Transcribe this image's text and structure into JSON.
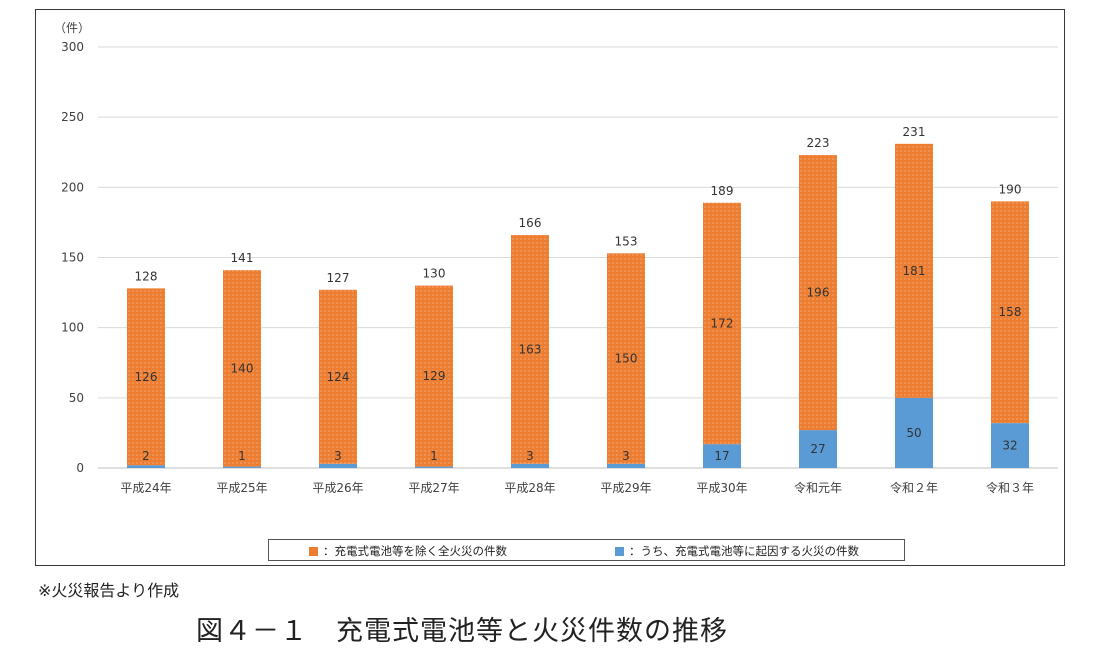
{
  "chart_data": {
    "type": "bar",
    "stacked": true,
    "unit_label": "（件）",
    "ylim": [
      0,
      300
    ],
    "yticks": [
      0,
      50,
      100,
      150,
      200,
      250,
      300
    ],
    "grid": true,
    "categories": [
      "平成24年",
      "平成25年",
      "平成26年",
      "平成27年",
      "平成28年",
      "平成29年",
      "平成30年",
      "令和元年",
      "令和２年",
      "令和３年"
    ],
    "series": [
      {
        "name": "：うち、充電式電池等に起因する火災の件数",
        "color": "#5b9bd5",
        "values": [
          2,
          1,
          3,
          1,
          3,
          3,
          17,
          27,
          50,
          32
        ]
      },
      {
        "name": "：充電式電池等を除く全火災の件数",
        "color": "#ed7d31",
        "values": [
          126,
          140,
          124,
          129,
          163,
          150,
          172,
          196,
          181,
          158
        ]
      }
    ],
    "totals": [
      128,
      141,
      127,
      130,
      166,
      153,
      189,
      223,
      231,
      190
    ],
    "legend_position": "bottom"
  },
  "legend": {
    "other_fires": "：充電式電池等を除く全火災の件数",
    "battery_fires": "：うち、充電式電池等に起因する火災の件数"
  },
  "colors": {
    "orange": "#ed7d31",
    "blue": "#5b9bd5",
    "grid": "#d9d9d9"
  },
  "source_note": "※火災報告より作成",
  "figure_caption": "図４－１　充電式電池等と火災件数の推移"
}
